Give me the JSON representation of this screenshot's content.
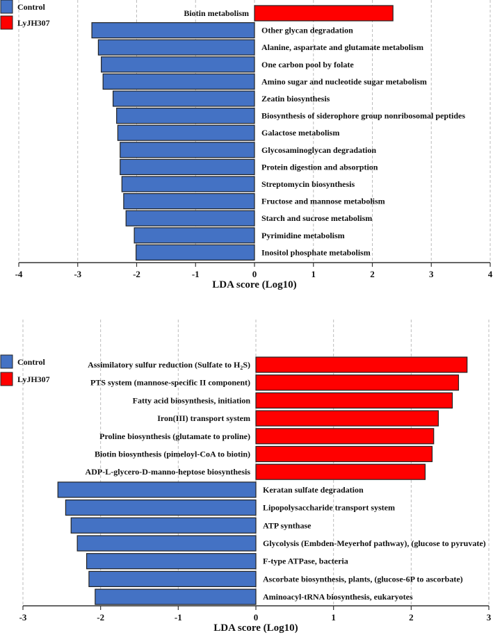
{
  "chart_data": [
    {
      "type": "bar",
      "orientation": "horizontal",
      "xlabel": "LDA score (Log10)",
      "xlim": [
        -4,
        4
      ],
      "ticks": [
        "-4",
        "-3",
        "-2",
        "-1",
        "0",
        "1",
        "2",
        "3",
        "4"
      ],
      "legend": [
        {
          "name": "Control",
          "color": "#4472C4"
        },
        {
          "name": "LyJH307",
          "color": "#FF0000"
        }
      ],
      "legend_position": "top-left",
      "grid": "vertical dashed",
      "categories": [
        "Biotin metabolism",
        "Other glycan degradation",
        "Alanine, aspartate and glutamate metabolism",
        "One carbon pool by folate",
        "Amino sugar and nucleotide sugar metabolism",
        "Zeatin biosynthesis",
        "Biosynthesis of siderophore group nonribosomal peptides",
        "Galactose metabolism",
        "Glycosaminoglycan degradation",
        "Protein digestion and absorption",
        "Streptomycin biosynthesis",
        "Fructose and mannose metabolism",
        "Starch and sucrose metabolism",
        "Pyrimidine metabolism",
        "Inositol phosphate metabolism"
      ],
      "values": [
        2.35,
        -2.76,
        -2.65,
        -2.6,
        -2.57,
        -2.4,
        -2.34,
        -2.32,
        -2.28,
        -2.28,
        -2.25,
        -2.22,
        -2.18,
        -2.04,
        -2.01
      ]
    },
    {
      "type": "bar",
      "orientation": "horizontal",
      "xlabel": "LDA score (Log10)",
      "xlim": [
        -3,
        3
      ],
      "ticks": [
        "-3",
        "-2",
        "-1",
        "0",
        "1",
        "2",
        "3"
      ],
      "legend": [
        {
          "name": "Control",
          "color": "#4472C4"
        },
        {
          "name": "LyJH307",
          "color": "#FF0000"
        }
      ],
      "legend_position": "top-left",
      "grid": "vertical dashed",
      "categories": [
        "Assimilatory sulfur reduction (Sulfate to H2S)",
        "PTS system (mannose-specific II component)",
        "Fatty acid biosynthesis, initiation",
        "Iron(III) transport system",
        "Proline biosynthesis (glutamate to proline)",
        "Biotin biosynthesis (pimeloyl-CoA to biotin)",
        "ADP-L-glycero-D-manno-heptose biosynthesis",
        "Keratan sulfate degradation",
        "Lipopolysaccharide transport system",
        "ATP synthase",
        "Glycolysis (Embden-Meyerhof pathway), (glucose to pyruvate)",
        "F-type ATPase, bacteria",
        "Ascorbate biosynthesis, plants, (glucose-6P to ascorbate)",
        "Aminoacyl-tRNA biosynthesis, eukaryotes"
      ],
      "values": [
        2.72,
        2.61,
        2.53,
        2.35,
        2.29,
        2.27,
        2.18,
        -2.55,
        -2.45,
        -2.38,
        -2.3,
        -2.18,
        -2.15,
        -2.07
      ]
    }
  ]
}
